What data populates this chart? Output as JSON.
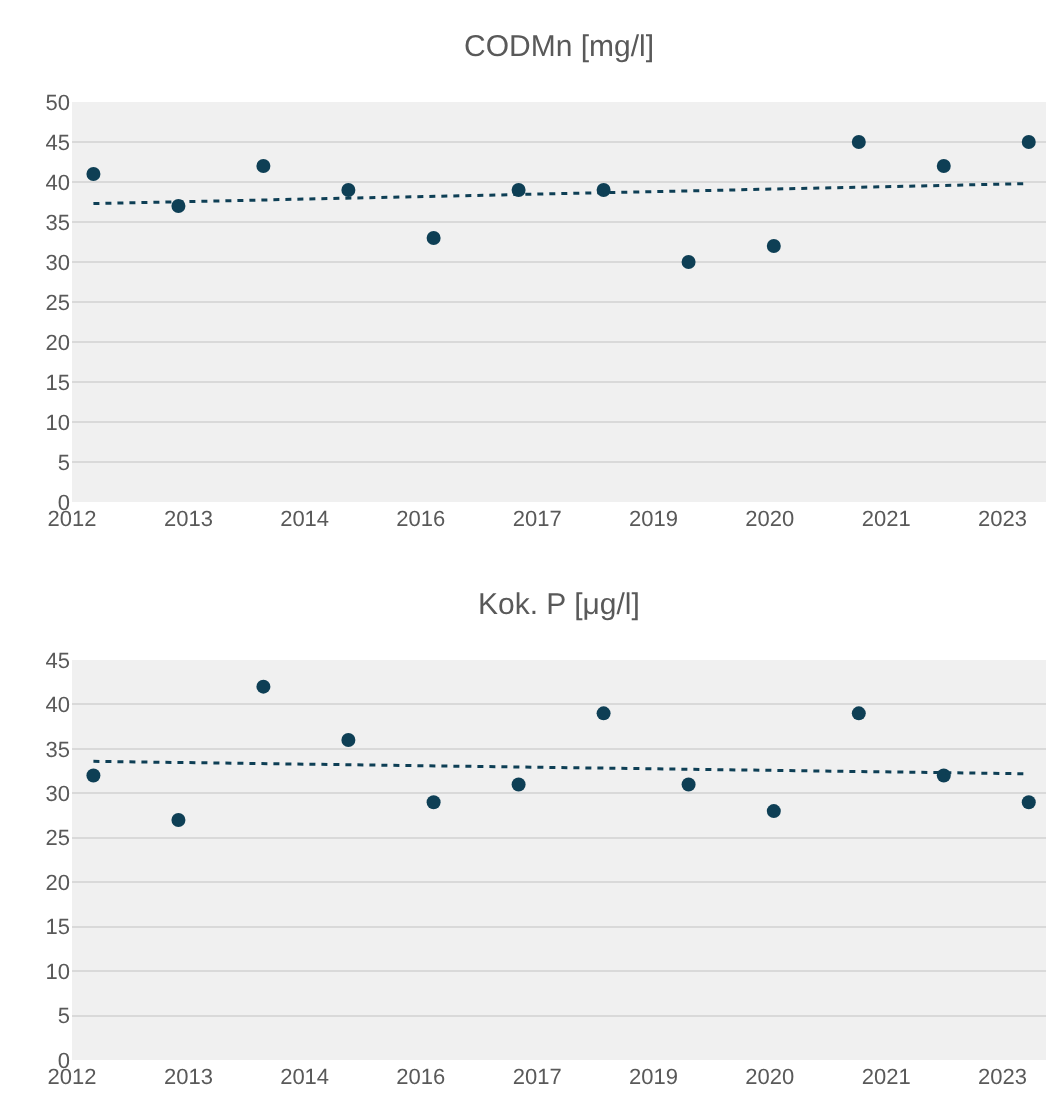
{
  "chart_data": [
    {
      "type": "scatter",
      "title": "CODMn [mg/l]",
      "grid": "y",
      "x": [
        "2012-06-15",
        "2013-06-15",
        "2014-06-15",
        "2015-06-15",
        "2016-06-15",
        "2017-06-15",
        "2018-06-15",
        "2019-06-15",
        "2020-06-15",
        "2021-06-15",
        "2022-06-15",
        "2023-06-15"
      ],
      "series": [
        {
          "color": "#0e3f55",
          "marker": "circle",
          "values": [
            41,
            37,
            42,
            39,
            33,
            39,
            39,
            30,
            32,
            45,
            42,
            45
          ]
        },
        {
          "type": "line",
          "marker": "none",
          "line_style": "dotted",
          "color": "#0e3f55",
          "x": [
            "2012-06-15",
            "2023-06-15"
          ],
          "values": [
            37.3,
            39.8
          ]
        }
      ],
      "xlim": [
        "2012-03-15",
        "2023-08-28"
      ],
      "xticks": [
        {
          "value": "2012-03-15",
          "label": "2012"
        },
        {
          "value": "2013-07-28",
          "label": "2013"
        },
        {
          "value": "2014-12-09",
          "label": "2014"
        },
        {
          "value": "2016-04-21",
          "label": "2016"
        },
        {
          "value": "2017-09-03",
          "label": "2017"
        },
        {
          "value": "2019-01-15",
          "label": "2019"
        },
        {
          "value": "2020-05-29",
          "label": "2020"
        },
        {
          "value": "2021-10-11",
          "label": "2021"
        },
        {
          "value": "2023-02-22",
          "label": "2023"
        }
      ],
      "ylim": [
        0,
        50
      ],
      "yticks": [
        0,
        5,
        10,
        15,
        20,
        25,
        30,
        35,
        40,
        45,
        50
      ]
    },
    {
      "type": "scatter",
      "title": "Kok. P [μg/l]",
      "grid": "y",
      "x": [
        "2012-06-15",
        "2013-06-15",
        "2014-06-15",
        "2015-06-15",
        "2016-06-15",
        "2017-06-15",
        "2018-06-15",
        "2019-06-15",
        "2020-06-15",
        "2021-06-15",
        "2022-06-15",
        "2023-06-15"
      ],
      "series": [
        {
          "color": "#0e3f55",
          "marker": "circle",
          "values": [
            32,
            27,
            42,
            36,
            29,
            31,
            39,
            31,
            28,
            39,
            32,
            29
          ]
        },
        {
          "type": "line",
          "marker": "none",
          "line_style": "dotted",
          "color": "#0e3f55",
          "x": [
            "2012-06-15",
            "2023-06-15"
          ],
          "values": [
            33.6,
            32.2
          ]
        }
      ],
      "xlim": [
        "2012-03-15",
        "2023-08-28"
      ],
      "xticks": [
        {
          "value": "2012-03-15",
          "label": "2012"
        },
        {
          "value": "2013-07-28",
          "label": "2013"
        },
        {
          "value": "2014-12-09",
          "label": "2014"
        },
        {
          "value": "2016-04-21",
          "label": "2016"
        },
        {
          "value": "2017-09-03",
          "label": "2017"
        },
        {
          "value": "2019-01-15",
          "label": "2019"
        },
        {
          "value": "2020-05-29",
          "label": "2020"
        },
        {
          "value": "2021-10-11",
          "label": "2021"
        },
        {
          "value": "2023-02-22",
          "label": "2023"
        }
      ],
      "ylim": [
        0,
        45
      ],
      "yticks": [
        0,
        5,
        10,
        15,
        20,
        25,
        30,
        35,
        40,
        45
      ]
    }
  ]
}
